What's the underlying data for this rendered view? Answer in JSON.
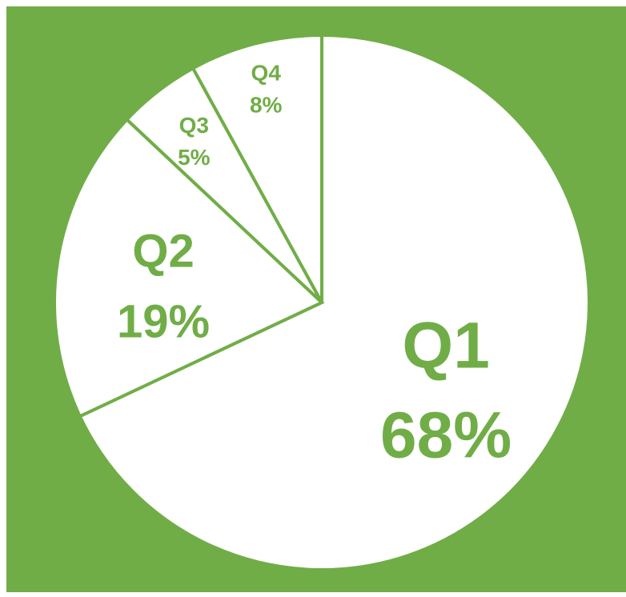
{
  "chart_data": {
    "type": "pie",
    "start_angle": "12 o'clock",
    "direction": "clockwise",
    "categories": [
      "Q1",
      "Q2",
      "Q3",
      "Q4"
    ],
    "values": [
      68,
      19,
      5,
      8
    ],
    "value_labels": [
      "68%",
      "19%",
      "5%",
      "8%"
    ],
    "title": "",
    "legend": "none"
  },
  "colors": {
    "background": "#70ad47",
    "slice_fill": "#ffffff",
    "slice_stroke": "#70ad47",
    "label": "#70ad47"
  }
}
